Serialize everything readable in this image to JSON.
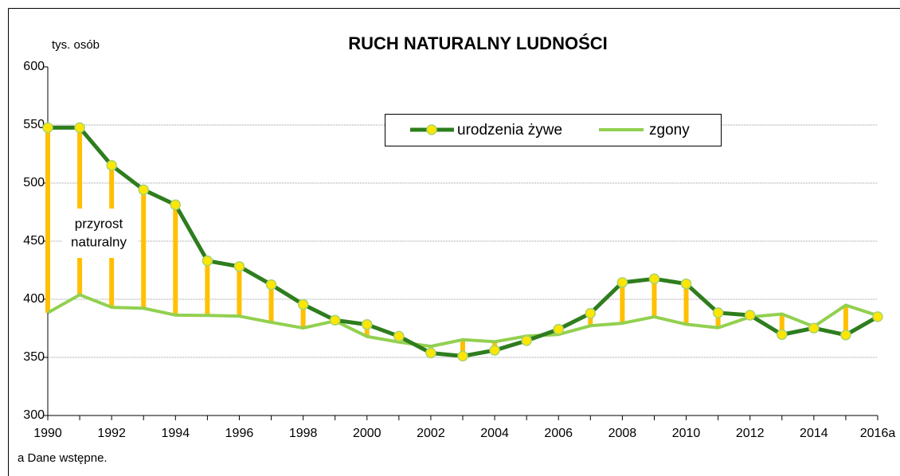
{
  "chart_data": {
    "type": "line",
    "title": "RUCH NATURALNY LUDNOŚCI",
    "y_label": "tys. osób",
    "annotation": [
      "przyrost",
      "naturalny"
    ],
    "footnote": "a  Dane wstępne.",
    "categories": [
      "1990",
      null,
      "1992",
      null,
      "1994",
      null,
      "1996",
      null,
      "1998",
      null,
      "2000",
      null,
      "2002",
      null,
      "2004",
      null,
      "2006",
      null,
      "2008",
      null,
      "2010",
      null,
      "2012",
      null,
      "2014",
      null,
      "2016a"
    ],
    "series": [
      {
        "name": "urodzenia żywe",
        "color": "#2e7d1e",
        "marker_fill": "#ffe600",
        "marker_edge": "#a9d46e",
        "values": [
          547.7,
          547.7,
          515.2,
          494.3,
          481.3,
          433.1,
          428.2,
          412.6,
          395.6,
          382.0,
          378.3,
          368.2,
          353.8,
          351.1,
          356.1,
          364.4,
          374.2,
          387.9,
          414.5,
          417.6,
          413.3,
          388.4,
          386.3,
          369.6,
          375.2,
          369.3,
          385.0
        ]
      },
      {
        "name": "zgony",
        "color": "#92d050",
        "values": [
          388.4,
          403.9,
          393.1,
          392.3,
          386.4,
          386.1,
          385.5,
          380.2,
          375.3,
          381.4,
          368.0,
          363.2,
          359.5,
          365.2,
          363.5,
          368.3,
          369.7,
          377.2,
          379.4,
          384.9,
          378.5,
          375.5,
          384.8,
          387.3,
          376.5,
          394.9,
          386.0
        ]
      }
    ],
    "difference_color": "#ffc000",
    "ylim": [
      300,
      600
    ],
    "yticks": [
      300,
      350,
      400,
      450,
      500,
      550,
      600
    ],
    "grid": true
  }
}
